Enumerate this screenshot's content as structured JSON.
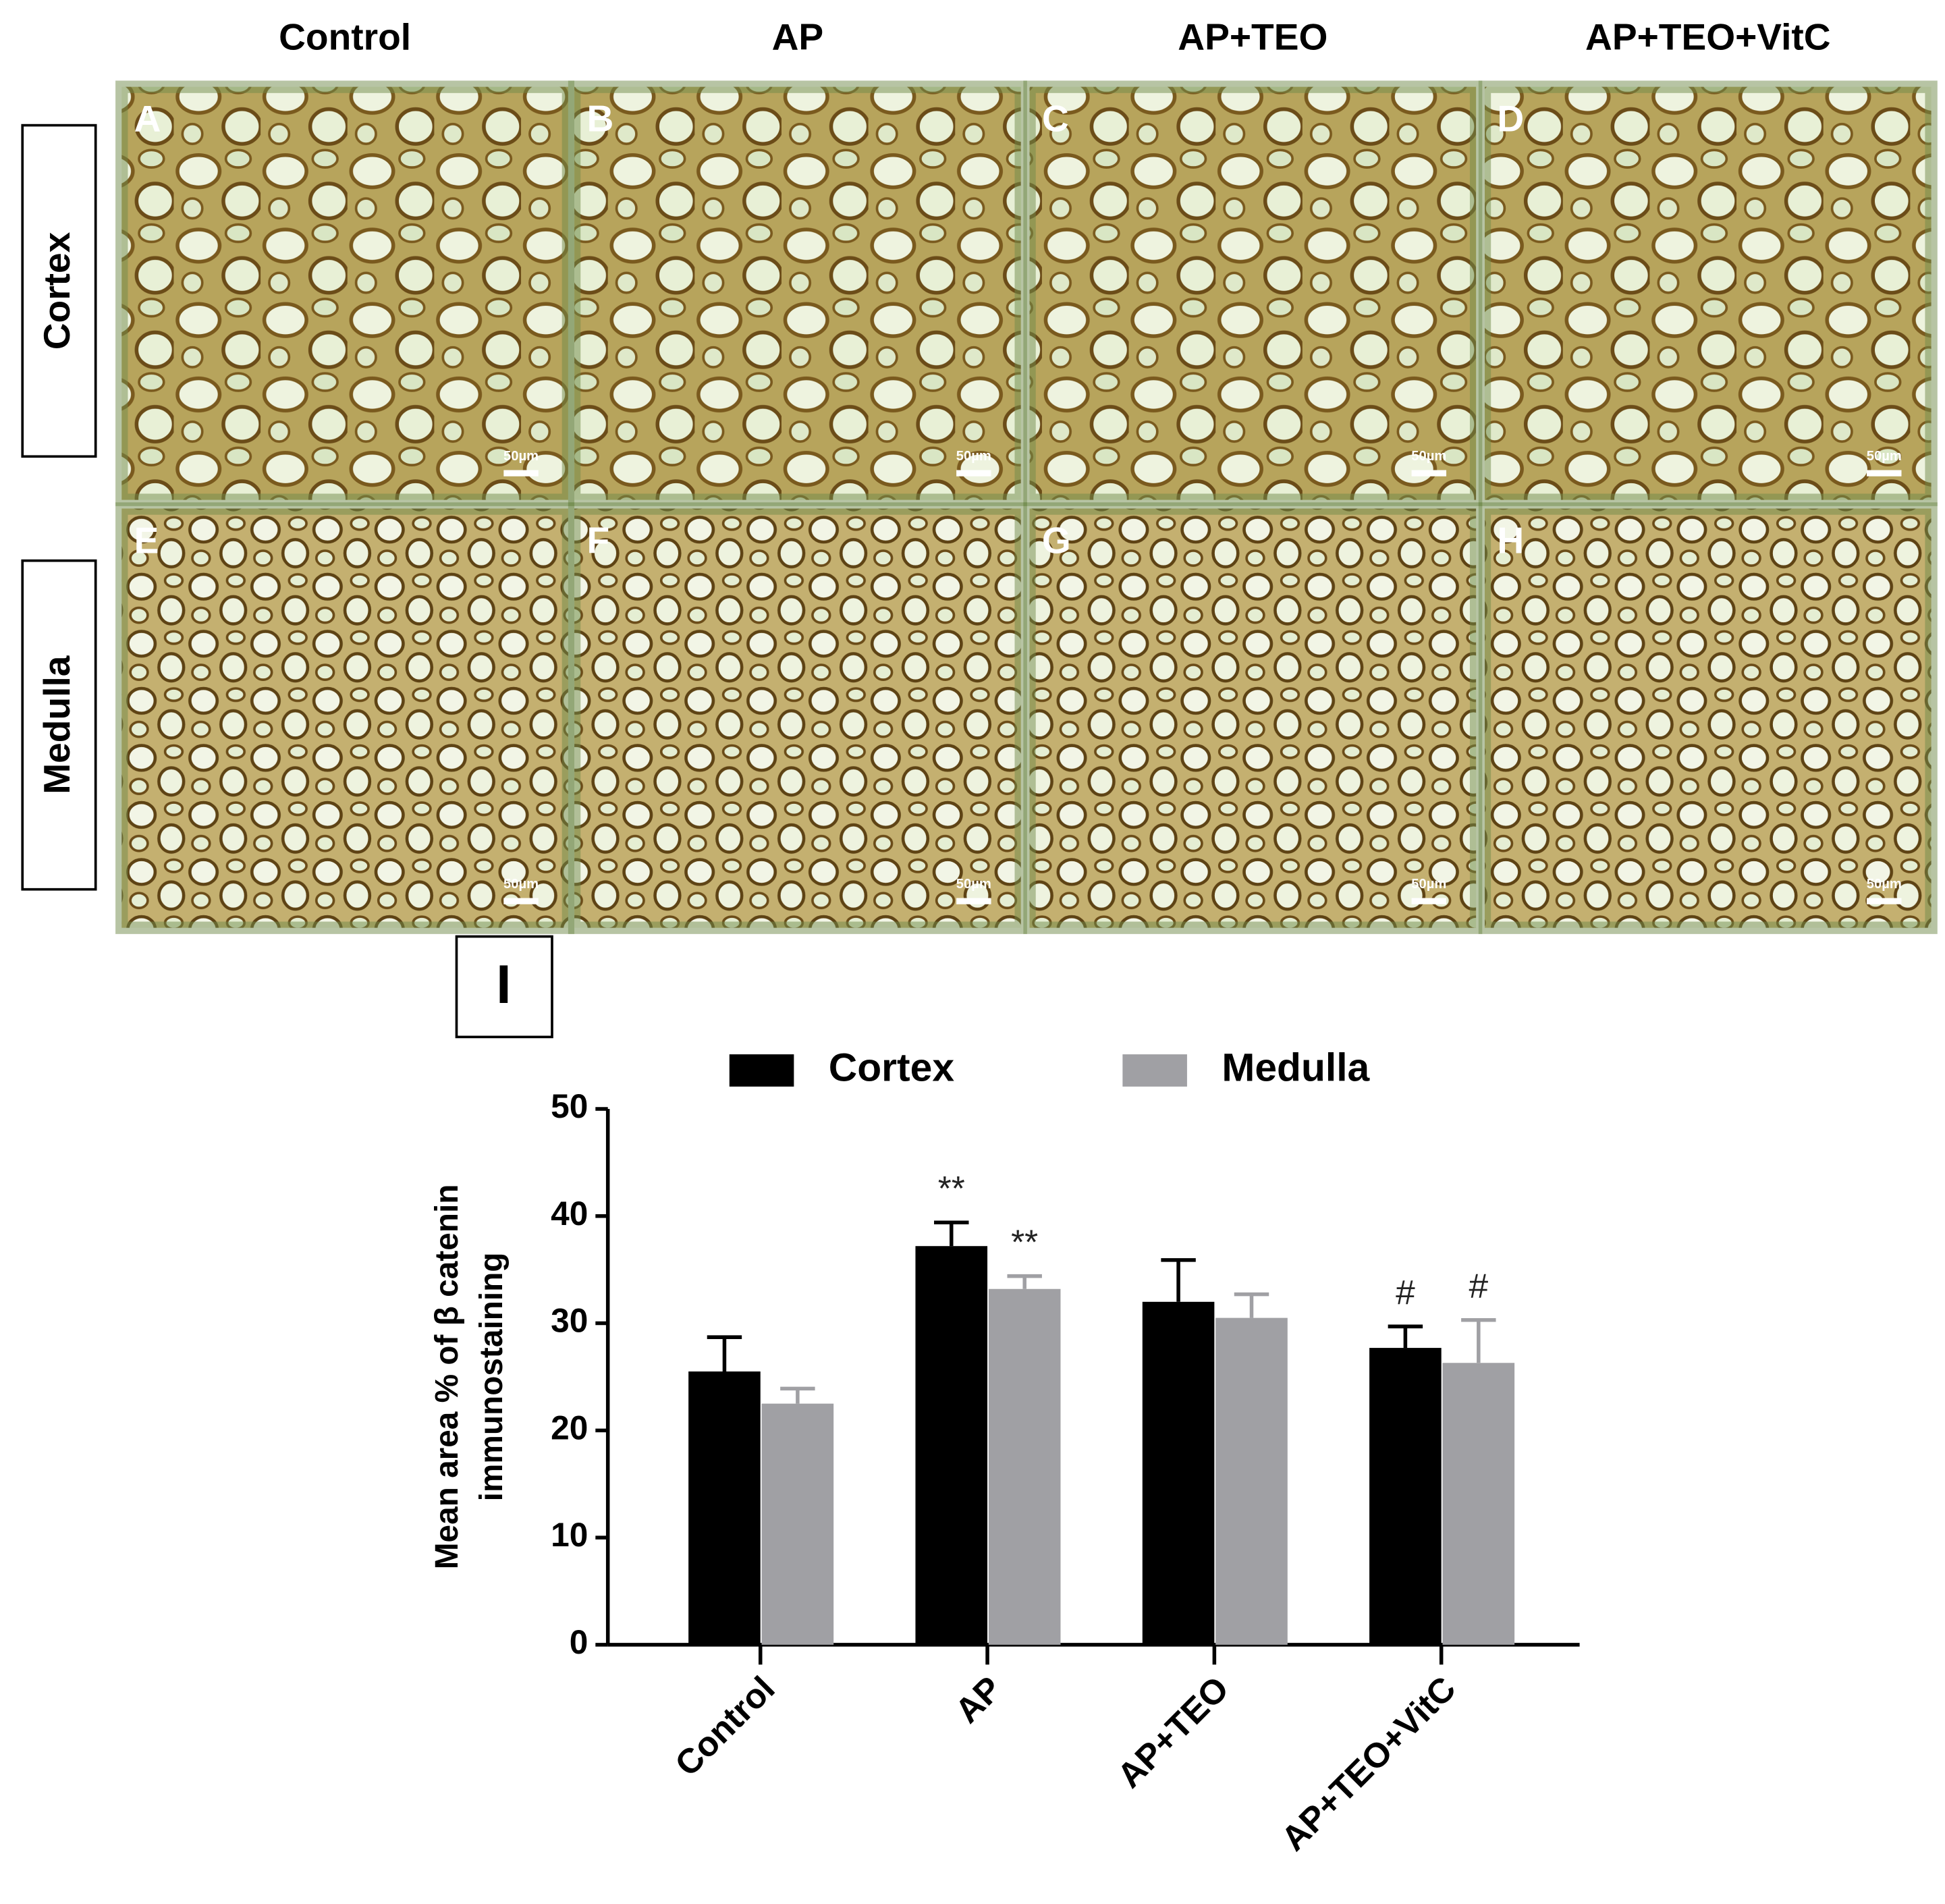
{
  "figure": {
    "columns": [
      "Control",
      "AP",
      "AP+TEO",
      "AP+TEO+VitC"
    ],
    "rows": [
      "Cortex",
      "Medulla"
    ],
    "panels": [
      {
        "letter": "A",
        "scale": "50µm"
      },
      {
        "letter": "B",
        "scale": "50µm"
      },
      {
        "letter": "C",
        "scale": "50µm"
      },
      {
        "letter": "D",
        "scale": "50µm"
      },
      {
        "letter": "E",
        "scale": "50µm"
      },
      {
        "letter": "F",
        "scale": "50µm"
      },
      {
        "letter": "G",
        "scale": "50µm"
      },
      {
        "letter": "H",
        "scale": "50µm"
      }
    ],
    "chart_panel_letter": "I"
  },
  "chart_data": {
    "type": "bar",
    "y_label": [
      "Mean area % of β catenin",
      "immunostaining"
    ],
    "categories": [
      "Control",
      "AP",
      "AP+TEO",
      "AP+TEO+VitC"
    ],
    "series": [
      {
        "name": "Cortex",
        "color": "#000000",
        "values": [
          25.5,
          37.2,
          32,
          27.7
        ],
        "errors": [
          3.2,
          2.2,
          3.9,
          2.0
        ],
        "annotations": [
          null,
          "**",
          null,
          "#"
        ]
      },
      {
        "name": "Medulla",
        "color": "#a0a0a4",
        "values": [
          22.5,
          33.2,
          30.5,
          26.3
        ],
        "errors": [
          1.4,
          1.2,
          2.2,
          4.0
        ],
        "annotations": [
          null,
          "**",
          null,
          "#"
        ]
      }
    ],
    "ylim": [
      0,
      50
    ],
    "yticks": [
      0,
      10,
      20,
      30,
      40,
      50
    ],
    "legend": "top"
  }
}
